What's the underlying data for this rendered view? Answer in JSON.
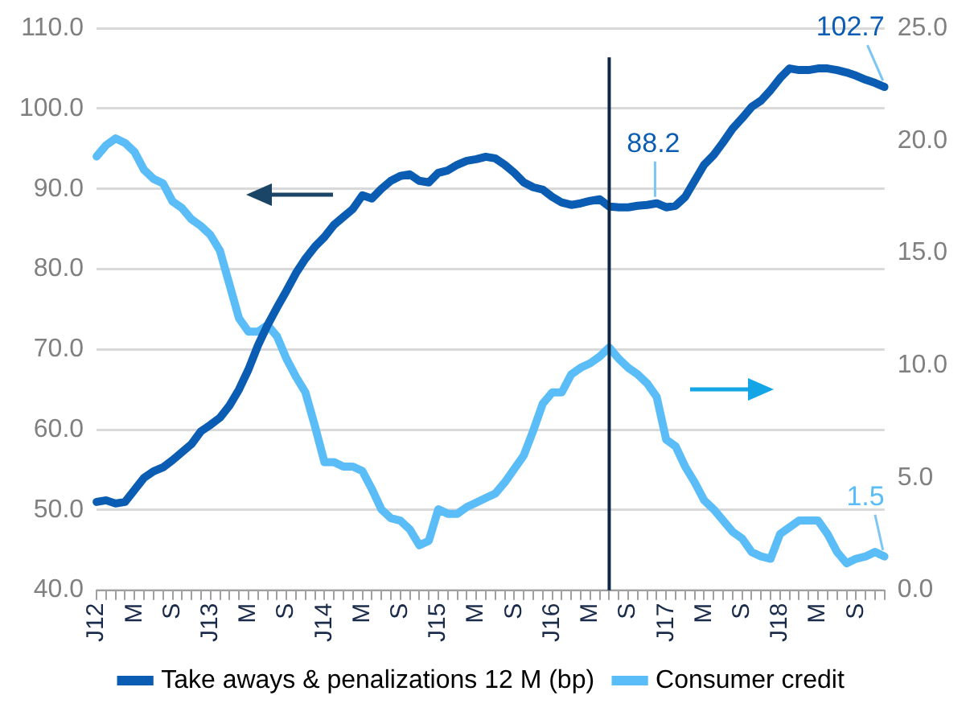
{
  "chart_data": {
    "type": "line",
    "categories": [
      "J12",
      null,
      null,
      null,
      "M",
      null,
      null,
      null,
      "S",
      null,
      null,
      null,
      "J13",
      null,
      null,
      null,
      "M",
      null,
      null,
      null,
      "S",
      null,
      null,
      null,
      "J14",
      null,
      null,
      null,
      "M",
      null,
      null,
      null,
      "S",
      null,
      null,
      null,
      "J15",
      null,
      null,
      null,
      "M",
      null,
      null,
      null,
      "S",
      null,
      null,
      null,
      "J16",
      null,
      null,
      null,
      "M",
      null,
      null,
      null,
      "S",
      null,
      null,
      null,
      "J17",
      null,
      null,
      null,
      "M",
      null,
      null,
      null,
      "S",
      null,
      null,
      null,
      "J18",
      null,
      null,
      null,
      "M",
      null,
      null,
      null,
      "S",
      null,
      null,
      null
    ],
    "series": [
      {
        "name": "Take aways & penalizations 12 M (bp)",
        "color": "#0b5db3",
        "values": [
          51.0,
          51.2,
          50.8,
          51.0,
          52.5,
          54.0,
          54.8,
          55.3,
          56.2,
          57.2,
          58.2,
          59.8,
          60.6,
          61.5,
          63.0,
          65.0,
          67.5,
          70.5,
          73.0,
          75.2,
          77.3,
          79.5,
          81.3,
          82.8,
          84.0,
          85.5,
          86.5,
          87.5,
          89.2,
          88.8,
          90.0,
          91.0,
          91.6,
          91.8,
          91.0,
          90.8,
          92.0,
          92.3,
          93.0,
          93.5,
          93.7,
          94.0,
          93.8,
          93.0,
          92.0,
          90.8,
          90.2,
          89.9,
          89.0,
          88.3,
          88.0,
          88.2,
          88.5,
          88.7,
          87.8,
          87.7,
          87.7,
          87.9,
          88.0,
          88.2,
          87.7,
          87.9,
          89.0,
          91.0,
          93.0,
          94.2,
          95.8,
          97.5,
          98.8,
          100.2,
          101.0,
          102.3,
          103.8,
          105.0,
          104.8,
          104.8,
          105.0,
          105.0,
          104.8,
          104.5,
          104.1,
          103.6,
          103.2,
          102.7
        ],
        "value_labels": [
          null,
          null,
          null,
          null,
          null,
          null,
          null,
          null,
          null,
          null,
          null,
          null,
          null,
          null,
          null,
          null,
          null,
          null,
          null,
          null,
          null,
          null,
          null,
          null,
          null,
          null,
          null,
          null,
          null,
          null,
          null,
          null,
          null,
          null,
          null,
          null,
          null,
          null,
          null,
          null,
          null,
          null,
          null,
          null,
          null,
          null,
          null,
          null,
          null,
          null,
          null,
          null,
          null,
          null,
          null,
          null,
          null,
          null,
          null,
          "88.2",
          null,
          null,
          null,
          null,
          null,
          null,
          null,
          null,
          null,
          null,
          null,
          null,
          null,
          null,
          null,
          null,
          null,
          null,
          null,
          null,
          null,
          null,
          null,
          "102.7"
        ]
      },
      {
        "name": "Consumer credit",
        "color": "#5bbdf7",
        "axis": "y2",
        "values": [
          19.3,
          19.8,
          20.1,
          19.9,
          19.5,
          18.7,
          18.3,
          18.1,
          17.3,
          17.0,
          16.5,
          16.2,
          15.8,
          15.1,
          13.6,
          12.1,
          11.5,
          11.5,
          11.8,
          11.3,
          10.3,
          9.5,
          8.8,
          7.3,
          5.7,
          5.7,
          5.5,
          5.5,
          5.3,
          4.5,
          3.6,
          3.2,
          3.1,
          2.7,
          2.0,
          2.2,
          3.6,
          3.4,
          3.4,
          3.7,
          3.9,
          4.1,
          4.3,
          4.8,
          5.4,
          6.0,
          7.1,
          8.3,
          8.8,
          8.8,
          9.6,
          9.9,
          10.1,
          10.4,
          10.8,
          10.3,
          9.9,
          9.6,
          9.2,
          8.6,
          6.7,
          6.4,
          5.5,
          4.8,
          4.0,
          3.6,
          3.1,
          2.6,
          2.3,
          1.7,
          1.5,
          1.4,
          2.5,
          2.8,
          3.1,
          3.1,
          3.1,
          2.5,
          1.7,
          1.2,
          1.4,
          1.5,
          1.7,
          1.5
        ],
        "value_labels": [
          null,
          null,
          null,
          null,
          null,
          null,
          null,
          null,
          null,
          null,
          null,
          null,
          null,
          null,
          null,
          null,
          null,
          null,
          null,
          null,
          null,
          null,
          null,
          null,
          null,
          null,
          null,
          null,
          null,
          null,
          null,
          null,
          null,
          null,
          null,
          null,
          null,
          null,
          null,
          null,
          null,
          null,
          null,
          null,
          null,
          null,
          null,
          null,
          null,
          null,
          null,
          null,
          null,
          null,
          null,
          null,
          null,
          null,
          null,
          null,
          null,
          null,
          null,
          null,
          null,
          null,
          null,
          null,
          null,
          null,
          null,
          null,
          null,
          null,
          null,
          null,
          null,
          null,
          null,
          null,
          null,
          null,
          null,
          "1.5"
        ]
      }
    ],
    "ylim": [
      40,
      110
    ],
    "yticks": [
      {
        "value": 40,
        "label": "40.0"
      },
      {
        "value": 50,
        "label": "50.0"
      },
      {
        "value": 60,
        "label": "60.0"
      },
      {
        "value": 70,
        "label": "70.0"
      },
      {
        "value": 80,
        "label": "80.0"
      },
      {
        "value": 90,
        "label": "90.0"
      },
      {
        "value": 100,
        "label": "100.0"
      },
      {
        "value": 110,
        "label": "110.0"
      }
    ],
    "y2lim": [
      0,
      25
    ],
    "y2ticks": [
      {
        "value": 0,
        "label": "0.0"
      },
      {
        "value": 5,
        "label": "5.0"
      },
      {
        "value": 10,
        "label": "10.0"
      },
      {
        "value": 15,
        "label": "15.0"
      },
      {
        "value": 20,
        "label": "20.0"
      },
      {
        "value": 25,
        "label": "25.0"
      }
    ],
    "grid": "y",
    "legend": "bottom",
    "marker": "none",
    "line_style": "solid"
  }
}
